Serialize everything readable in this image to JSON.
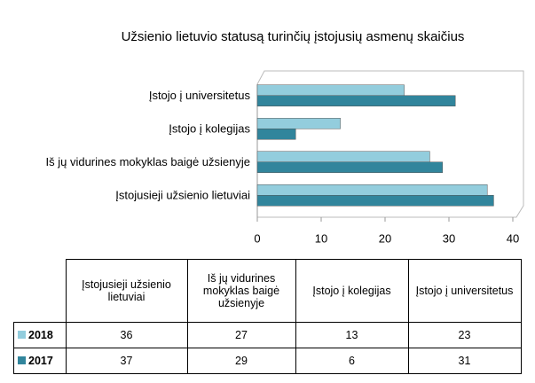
{
  "chart_data": {
    "type": "bar",
    "orientation": "horizontal",
    "title": "Užsienio lietuvio statusą turinčių įstojusių asmenų skaičius",
    "categories": [
      "Įstojusieji užsienio lietuviai",
      "Iš jų vidurines mokyklas baigė užsienyje",
      "Įstojo į kolegijas",
      "Įstojo į universitetus"
    ],
    "series": [
      {
        "name": "2018",
        "color": "#93cddd",
        "values": [
          36,
          27,
          13,
          23
        ]
      },
      {
        "name": "2017",
        "color": "#31859c",
        "values": [
          37,
          29,
          6,
          31
        ]
      }
    ],
    "xlim": [
      0,
      40
    ],
    "xticks": [
      0,
      10,
      20,
      30,
      40
    ],
    "grid": false,
    "legend": "table"
  }
}
